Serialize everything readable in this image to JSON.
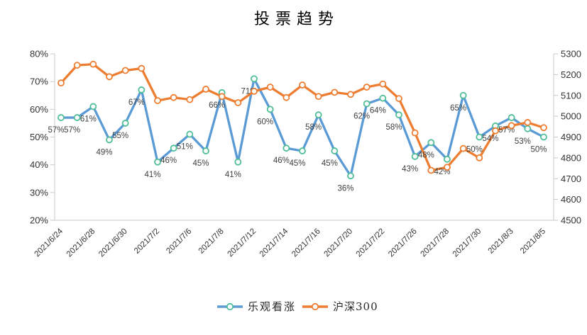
{
  "chart_data": {
    "type": "line",
    "title": "投票趋势",
    "x_tick_labels": [
      "2021/6/24",
      "2021/6/28",
      "2021/6/30",
      "2021/7/2",
      "2021/7/6",
      "2021/7/8",
      "2021/7/12",
      "2021/7/14",
      "2021/7/16",
      "2021/7/20",
      "2021/7/22",
      "2021/7/26",
      "2021/7/28",
      "2021/7/30",
      "2021/8/3",
      "2021/8/5"
    ],
    "x_tick_indices": [
      0,
      2,
      4,
      6,
      8,
      10,
      12,
      14,
      16,
      18,
      20,
      22,
      24,
      26,
      28,
      30
    ],
    "points_per_series": 31,
    "series": [
      {
        "name": "乐观看涨",
        "axis": "left",
        "color": "#5B9BD5",
        "marker_stroke": "#4FBE96",
        "unit": "%",
        "labels_visible": true,
        "values": [
          57,
          57,
          61,
          49,
          55,
          67,
          41,
          46,
          51,
          45,
          66,
          41,
          71,
          60,
          46,
          45,
          58,
          45,
          36,
          62,
          64,
          58,
          43,
          48,
          42,
          65,
          50,
          54,
          57,
          53,
          50
        ]
      },
      {
        "name": "沪深300",
        "axis": "right",
        "color": "#ED7D31",
        "marker_stroke": "#ED7D31",
        "unit": "",
        "labels_visible": false,
        "values": [
          5160,
          5245,
          5250,
          5190,
          5220,
          5230,
          5075,
          5090,
          5080,
          5130,
          5095,
          5065,
          5120,
          5140,
          5090,
          5150,
          5095,
          5115,
          5105,
          5140,
          5155,
          5085,
          4920,
          4740,
          4755,
          4845,
          4800,
          4930,
          4955,
          4970,
          4945
        ]
      }
    ],
    "left_axis": {
      "min": 20,
      "max": 80,
      "ticks": [
        "80%",
        "70%",
        "60%",
        "50%",
        "40%",
        "30%",
        "20%"
      ]
    },
    "right_axis": {
      "min": 4500,
      "max": 5300,
      "ticks": [
        "5300",
        "5200",
        "5100",
        "5000",
        "4900",
        "4800",
        "4700",
        "4600",
        "4500"
      ]
    },
    "legend_position": "bottom",
    "grid": false,
    "colors": {
      "axis_line": "#C9C9C9",
      "tick_label": "#333333",
      "data_label": "#3F3F3F",
      "title": "#000000"
    }
  }
}
